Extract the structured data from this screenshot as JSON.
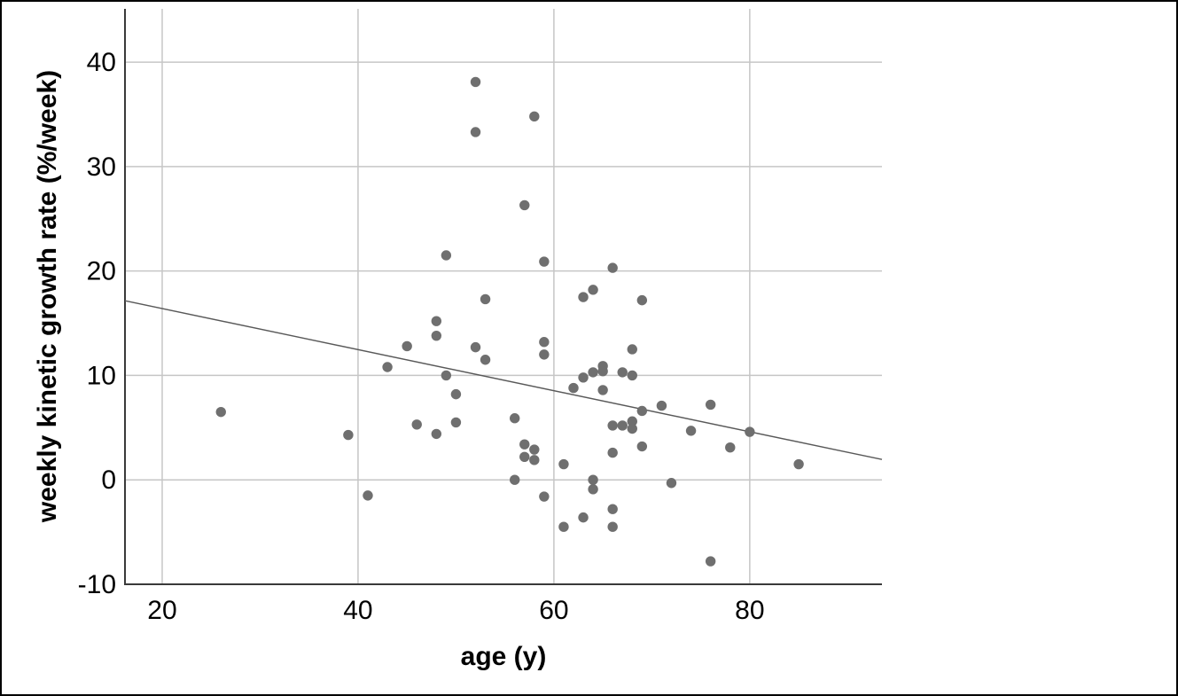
{
  "chart_data": {
    "type": "scatter",
    "title": "",
    "xlabel": "age (y)",
    "ylabel": "weekly kinetic growth rate (%/week)",
    "xlim": [
      16.2,
      93.5
    ],
    "ylim": [
      -10,
      45.1
    ],
    "x_ticks": [
      20,
      40,
      60,
      80
    ],
    "y_ticks": [
      -10,
      0,
      10,
      20,
      30,
      40
    ],
    "grid": true,
    "legend": "none",
    "points": [
      [
        52,
        38.1
      ],
      [
        58,
        34.8
      ],
      [
        52,
        33.3
      ],
      [
        57,
        26.3
      ],
      [
        49,
        21.5
      ],
      [
        59,
        20.9
      ],
      [
        66,
        20.3
      ],
      [
        64,
        18.2
      ],
      [
        63,
        17.5
      ],
      [
        69,
        17.2
      ],
      [
        53,
        17.3
      ],
      [
        48,
        15.2
      ],
      [
        48,
        13.8
      ],
      [
        45,
        12.8
      ],
      [
        52,
        12.7
      ],
      [
        59,
        13.2
      ],
      [
        59,
        12.0
      ],
      [
        53,
        11.5
      ],
      [
        68,
        12.5
      ],
      [
        43,
        10.8
      ],
      [
        49,
        10.0
      ],
      [
        65,
        10.9
      ],
      [
        64,
        10.3
      ],
      [
        65,
        10.4
      ],
      [
        67,
        10.3
      ],
      [
        68,
        10.0
      ],
      [
        63,
        9.8
      ],
      [
        62,
        8.8
      ],
      [
        65,
        8.6
      ],
      [
        50,
        8.2
      ],
      [
        26,
        6.5
      ],
      [
        69,
        6.6
      ],
      [
        71,
        7.1
      ],
      [
        76,
        7.2
      ],
      [
        56,
        5.9
      ],
      [
        46,
        5.3
      ],
      [
        48,
        4.4
      ],
      [
        50,
        5.5
      ],
      [
        39,
        4.3
      ],
      [
        66,
        5.2
      ],
      [
        67,
        5.2
      ],
      [
        68,
        5.6
      ],
      [
        68,
        4.9
      ],
      [
        74,
        4.7
      ],
      [
        80,
        4.6
      ],
      [
        78,
        3.1
      ],
      [
        85,
        1.5
      ],
      [
        69,
        3.2
      ],
      [
        66,
        2.6
      ],
      [
        57,
        3.4
      ],
      [
        58,
        2.9
      ],
      [
        57,
        2.2
      ],
      [
        58,
        1.9
      ],
      [
        61,
        1.5
      ],
      [
        56,
        0.0
      ],
      [
        64,
        0.0
      ],
      [
        64,
        -0.9
      ],
      [
        72,
        -0.3
      ],
      [
        41,
        -1.5
      ],
      [
        59,
        -1.6
      ],
      [
        66,
        -2.8
      ],
      [
        63,
        -3.6
      ],
      [
        61,
        -4.5
      ],
      [
        66,
        -4.5
      ],
      [
        76,
        -7.8
      ]
    ],
    "regression_line": {
      "x1": 16.2,
      "y1": 17.15,
      "x2": 93.5,
      "y2": 1.95
    },
    "colors": {
      "point": "#6f6f6f",
      "grid": "#c6c6c6",
      "axis": "#3a3a3a",
      "regression": "#595959",
      "text": "#000000",
      "background": "#ffffff"
    }
  }
}
